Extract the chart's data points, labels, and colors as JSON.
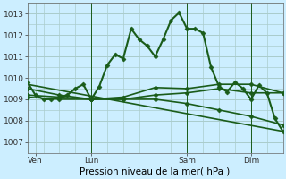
{
  "background_color": "#cceeff",
  "grid_color": "#aacccc",
  "line_color": "#1a5c1a",
  "title": "Pression niveau de la mer( hPa )",
  "ylim": [
    1006.5,
    1013.5
  ],
  "xlim": [
    0,
    32
  ],
  "xtick_labels": [
    "Ven",
    "Lun",
    "Sam",
    "Dim"
  ],
  "xtick_positions": [
    1,
    8,
    20,
    28
  ],
  "ytick_positions": [
    1007,
    1008,
    1009,
    1010,
    1011,
    1012,
    1013
  ],
  "ytick_labels": [
    "1007",
    "1008",
    "1009",
    "1010",
    "1011",
    "1012",
    "1013"
  ],
  "vlines": [
    8,
    20,
    28
  ],
  "series": [
    {
      "x": [
        0,
        1,
        2,
        3,
        4,
        5,
        6,
        7,
        8,
        9,
        10,
        11,
        12,
        13,
        14,
        15,
        16,
        17,
        18,
        19,
        20,
        21,
        22,
        23,
        24,
        25,
        26,
        27,
        28,
        29,
        30,
        31,
        32
      ],
      "y": [
        1009.8,
        1009.2,
        1009.0,
        1009.0,
        1009.1,
        1009.2,
        1009.5,
        1009.7,
        1009.0,
        1009.6,
        1010.6,
        1011.1,
        1010.9,
        1012.3,
        1011.8,
        1011.5,
        1011.0,
        1011.8,
        1012.7,
        1013.05,
        1012.3,
        1012.3,
        1012.1,
        1010.5,
        1009.6,
        1009.35,
        1009.8,
        1009.5,
        1009.0,
        1009.65,
        1009.3,
        1008.1,
        1007.5
      ],
      "marker": "D",
      "markersize": 2.5,
      "linewidth": 1.5
    },
    {
      "x": [
        0,
        4,
        8,
        12,
        16,
        20,
        24,
        28,
        32
      ],
      "y": [
        1009.2,
        1009.1,
        1009.0,
        1009.1,
        1009.55,
        1009.5,
        1009.7,
        1009.7,
        1009.3
      ],
      "marker": "D",
      "markersize": 2.5,
      "linewidth": 1.2
    },
    {
      "x": [
        0,
        4,
        8,
        12,
        16,
        20,
        24,
        28,
        32
      ],
      "y": [
        1009.1,
        1009.0,
        1009.0,
        1009.0,
        1009.2,
        1009.3,
        1009.5,
        1009.3,
        1009.3
      ],
      "marker": "D",
      "markersize": 2.5,
      "linewidth": 1.2
    },
    {
      "x": [
        0,
        4,
        8,
        12,
        16,
        20,
        24,
        28,
        32
      ],
      "y": [
        1009.5,
        1009.2,
        1009.0,
        1009.0,
        1009.0,
        1008.8,
        1008.5,
        1008.2,
        1007.8
      ],
      "marker": "D",
      "markersize": 2.5,
      "linewidth": 1.2
    },
    {
      "x": [
        0,
        32
      ],
      "y": [
        1009.7,
        1007.5
      ],
      "marker": null,
      "markersize": 0,
      "linewidth": 1.2
    }
  ]
}
